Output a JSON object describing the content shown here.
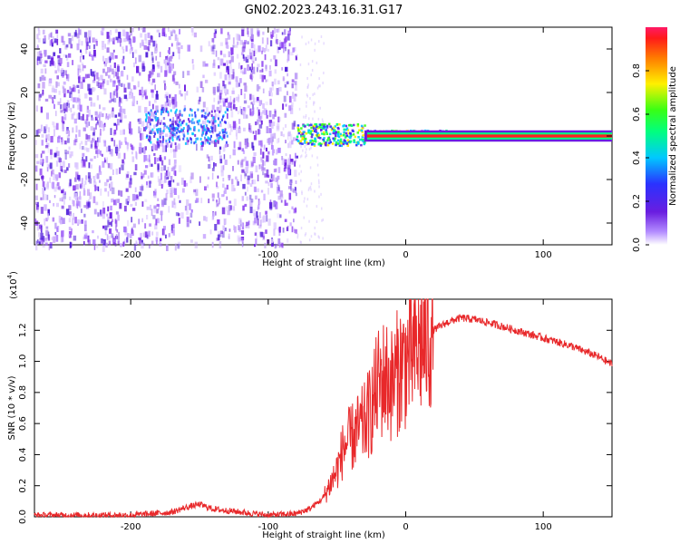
{
  "title": "GN02.2023.243.16.31.G17",
  "colors": {
    "snr_line": "#e8282a",
    "spectrogram_low": "#8a2be2",
    "spectrogram_high": "#ff0000"
  },
  "chart_data": [
    {
      "type": "heatmap",
      "title": "GN02.2023.243.16.31.G17",
      "xlabel": "Height of straight line (km)",
      "ylabel": "Frequency (Hz)",
      "xlim": [
        -270,
        150
      ],
      "ylim": [
        -50,
        50
      ],
      "x_ticks": [
        -200,
        -100,
        0,
        100
      ],
      "y_ticks": [
        -40,
        -20,
        0,
        20,
        40
      ],
      "colorbar": {
        "label": "Normalized spectral amplitude",
        "range": [
          0,
          1
        ],
        "ticks": [
          "0.0",
          "0.2",
          "0.4",
          "0.6",
          "0.8"
        ]
      },
      "features": [
        {
          "description_x": [
            -270,
            -80
          ],
          "frequency_spread": [
            -50,
            50
          ],
          "amplitude": 0.2
        },
        {
          "description_x": [
            -175,
            -130
          ],
          "frequency_center": 5,
          "amplitude": 0.4
        },
        {
          "description_x": [
            -80,
            150
          ],
          "frequency_center": 0,
          "amplitude": 1.0
        }
      ]
    },
    {
      "type": "line",
      "xlabel": "Height of straight line (km)",
      "ylabel": "SNR (10 * v/v)",
      "y_multiplier_label": "(x10",
      "y_multiplier_exp": "4",
      "y_multiplier_close": ")",
      "xlim": [
        -270,
        150
      ],
      "ylim": [
        0,
        1.4
      ],
      "x_ticks": [
        -200,
        -100,
        0,
        100
      ],
      "y_ticks": [
        "0.0",
        "0.2",
        "0.4",
        "0.6",
        "0.8",
        "1.0",
        "1.2"
      ],
      "series": [
        {
          "x": [
            -270,
            -200,
            -170,
            -160,
            -150,
            -140,
            -100,
            -80,
            -70,
            -60,
            -50,
            -45,
            -40,
            -35,
            -30,
            -25,
            -20,
            -15,
            -10,
            -5,
            0,
            5,
            10,
            15,
            20,
            30,
            40,
            50,
            60,
            80,
            100,
            120,
            140,
            150
          ],
          "y": [
            0.01,
            0.01,
            0.03,
            0.06,
            0.08,
            0.05,
            0.01,
            0.02,
            0.05,
            0.12,
            0.3,
            0.45,
            0.5,
            0.55,
            0.6,
            0.7,
            0.85,
            0.9,
            0.85,
            0.95,
            1.0,
            1.05,
            1.1,
            1.15,
            1.2,
            1.25,
            1.28,
            1.27,
            1.25,
            1.2,
            1.15,
            1.1,
            1.03,
            0.98
          ]
        }
      ]
    }
  ]
}
